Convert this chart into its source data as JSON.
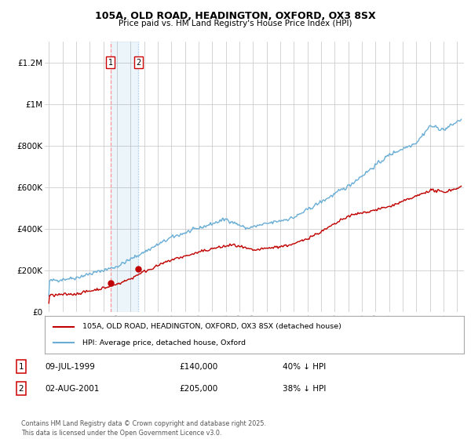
{
  "title_line1": "105A, OLD ROAD, HEADINGTON, OXFORD, OX3 8SX",
  "title_line2": "Price paid vs. HM Land Registry's House Price Index (HPI)",
  "ylim": [
    0,
    1300000
  ],
  "yticks": [
    0,
    200000,
    400000,
    600000,
    800000,
    1000000,
    1200000
  ],
  "ytick_labels": [
    "£0",
    "£200K",
    "£400K",
    "£600K",
    "£800K",
    "£1M",
    "£1.2M"
  ],
  "hpi_color": "#6aaed6",
  "price_color": "#c00000",
  "sale1_date": 1999.52,
  "sale1_price": 140000,
  "sale1_label": "1",
  "sale2_date": 2001.58,
  "sale2_price": 205000,
  "sale2_label": "2",
  "background_color": "#ffffff",
  "grid_color": "#cccccc",
  "legend_entry1": "105A, OLD ROAD, HEADINGTON, OXFORD, OX3 8SX (detached house)",
  "legend_entry2": "HPI: Average price, detached house, Oxford",
  "note1_label": "1",
  "note1_date": "09-JUL-1999",
  "note1_price": "£140,000",
  "note1_pct": "40% ↓ HPI",
  "note2_label": "2",
  "note2_date": "02-AUG-2001",
  "note2_price": "£205,000",
  "note2_pct": "38% ↓ HPI",
  "footer": "Contains HM Land Registry data © Crown copyright and database right 2025.\nThis data is licensed under the Open Government Licence v3.0.",
  "xlim_left": 1994.7,
  "xlim_right": 2025.5
}
